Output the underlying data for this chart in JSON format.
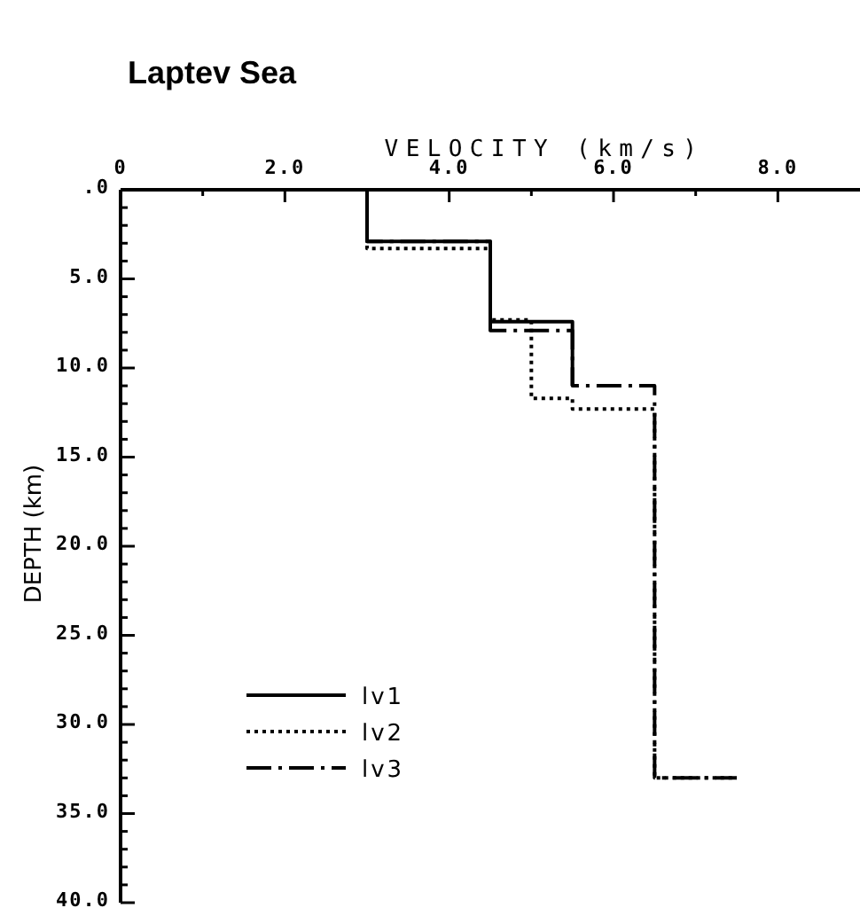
{
  "chart_data": {
    "type": "line",
    "title": "Laptev Sea",
    "xlabel": "VELOCITY (km/s)",
    "ylabel": "DEPTH (km)",
    "xlim": [
      0,
      9
    ],
    "xticks": [
      {
        "value": 0,
        "label": "0"
      },
      {
        "value": 1,
        "label": null
      },
      {
        "value": 2,
        "label": "2.0"
      },
      {
        "value": 3,
        "label": null
      },
      {
        "value": 4,
        "label": "4.0"
      },
      {
        "value": 5,
        "label": null
      },
      {
        "value": 6,
        "label": "6.0"
      },
      {
        "value": 7,
        "label": null
      },
      {
        "value": 8,
        "label": "8.0"
      }
    ],
    "ylim": [
      40,
      0
    ],
    "yticks": [
      {
        "value": 0,
        "label": ".0"
      },
      {
        "value": 1,
        "label": null
      },
      {
        "value": 2,
        "label": null
      },
      {
        "value": 3,
        "label": null
      },
      {
        "value": 4,
        "label": null
      },
      {
        "value": 5,
        "label": "5.0"
      },
      {
        "value": 6,
        "label": null
      },
      {
        "value": 7,
        "label": null
      },
      {
        "value": 8,
        "label": null
      },
      {
        "value": 9,
        "label": null
      },
      {
        "value": 10,
        "label": "10.0"
      },
      {
        "value": 11,
        "label": null
      },
      {
        "value": 12,
        "label": null
      },
      {
        "value": 13,
        "label": null
      },
      {
        "value": 14,
        "label": null
      },
      {
        "value": 15,
        "label": "15.0"
      },
      {
        "value": 16,
        "label": null
      },
      {
        "value": 17,
        "label": null
      },
      {
        "value": 18,
        "label": null
      },
      {
        "value": 19,
        "label": null
      },
      {
        "value": 20,
        "label": "20.0"
      },
      {
        "value": 21,
        "label": null
      },
      {
        "value": 22,
        "label": null
      },
      {
        "value": 23,
        "label": null
      },
      {
        "value": 24,
        "label": null
      },
      {
        "value": 25,
        "label": "25.0"
      },
      {
        "value": 26,
        "label": null
      },
      {
        "value": 27,
        "label": null
      },
      {
        "value": 28,
        "label": null
      },
      {
        "value": 29,
        "label": null
      },
      {
        "value": 30,
        "label": "30.0"
      },
      {
        "value": 31,
        "label": null
      },
      {
        "value": 32,
        "label": null
      },
      {
        "value": 33,
        "label": null
      },
      {
        "value": 34,
        "label": null
      },
      {
        "value": 35,
        "label": "35.0"
      },
      {
        "value": 36,
        "label": null
      },
      {
        "value": 37,
        "label": null
      },
      {
        "value": 38,
        "label": null
      },
      {
        "value": 39,
        "label": null
      },
      {
        "value": 40,
        "label": "40.0"
      }
    ],
    "series": [
      {
        "name": "lv1",
        "color": "#000000",
        "line_style": "solid",
        "x": [
          3.0,
          3.0,
          4.5,
          4.5,
          5.5,
          5.5
        ],
        "values": [
          0,
          2.9,
          2.9,
          7.4,
          7.4,
          11.0
        ]
      },
      {
        "name": "lv2",
        "color": "#000000",
        "line_style": "dotted",
        "x": [
          3.0,
          3.0,
          4.5,
          4.5,
          5.0,
          5.0,
          5.5,
          5.5,
          6.5,
          6.5,
          7.5
        ],
        "values": [
          0,
          3.3,
          3.3,
          7.3,
          7.3,
          11.7,
          11.7,
          12.3,
          12.3,
          33.0,
          33.0
        ]
      },
      {
        "name": "lv3",
        "color": "#000000",
        "line_style": "dashdot",
        "x": [
          3.0,
          3.0,
          4.5,
          4.5,
          5.5,
          5.5,
          6.5,
          6.5,
          7.5
        ],
        "values": [
          0,
          2.9,
          2.9,
          7.9,
          7.9,
          11.0,
          11.0,
          33.0,
          33.0
        ]
      }
    ],
    "legend": "bottom left"
  }
}
